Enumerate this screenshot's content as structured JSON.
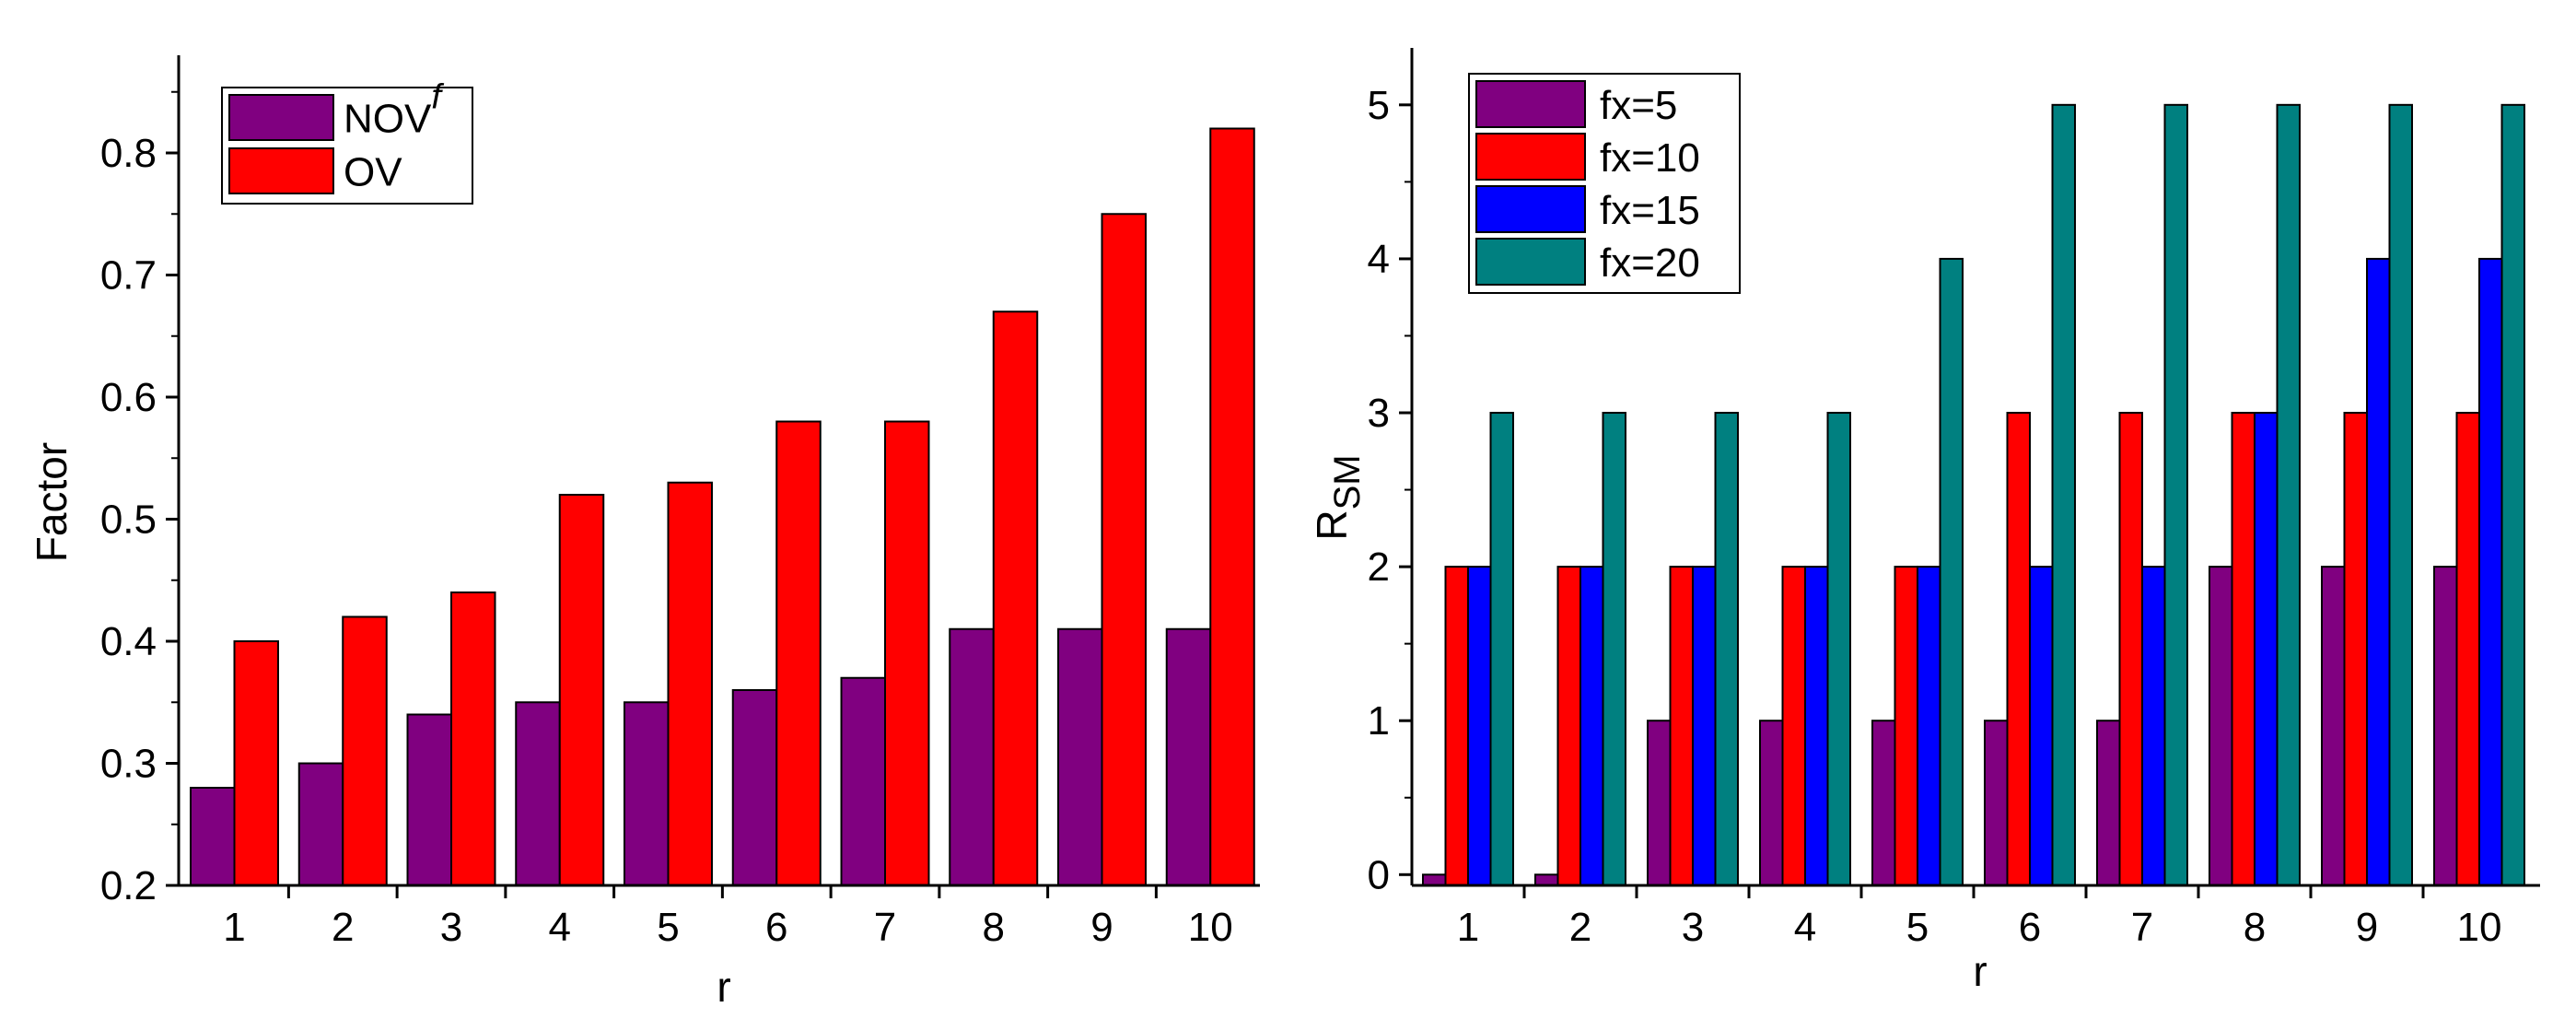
{
  "colors": {
    "nov": "#800080",
    "ov": "#ff0000",
    "fx5": "#800080",
    "fx10": "#ff0000",
    "fx15": "#0000ff",
    "fx20": "#008080"
  },
  "chart_data": [
    {
      "type": "bar",
      "title": "",
      "xlabel": "r",
      "ylabel": "Factor",
      "ylim": [
        0.2,
        0.88
      ],
      "yticks": [
        "0.2",
        "0.3",
        "0.4",
        "0.5",
        "0.6",
        "0.7",
        "0.8"
      ],
      "categories": [
        "1",
        "2",
        "3",
        "4",
        "5",
        "6",
        "7",
        "8",
        "9",
        "10"
      ],
      "legend_position": "top-left",
      "series": [
        {
          "name": "NOV",
          "name_sup": "f",
          "color": "#800080",
          "values": [
            0.28,
            0.3,
            0.34,
            0.35,
            0.35,
            0.36,
            0.37,
            0.41,
            0.41,
            0.41
          ]
        },
        {
          "name": "OV",
          "name_sup": "",
          "color": "#ff0000",
          "values": [
            0.4,
            0.42,
            0.44,
            0.52,
            0.53,
            0.58,
            0.58,
            0.67,
            0.75,
            0.82
          ]
        }
      ]
    },
    {
      "type": "bar",
      "title": "",
      "xlabel": "r",
      "ylabel": "R",
      "ylabel_sub": "SM",
      "ylim": [
        -0.07,
        5.37
      ],
      "yticks": [
        "0",
        "1",
        "2",
        "3",
        "4",
        "5"
      ],
      "categories": [
        "1",
        "2",
        "3",
        "4",
        "5",
        "6",
        "7",
        "8",
        "9",
        "10"
      ],
      "legend_position": "top-left",
      "series": [
        {
          "name": "fx=5",
          "color": "#800080",
          "values": [
            0,
            0,
            1,
            1,
            1,
            1,
            1,
            2,
            2,
            2
          ]
        },
        {
          "name": "fx=10",
          "color": "#ff0000",
          "values": [
            2,
            2,
            2,
            2,
            2,
            3,
            3,
            3,
            3,
            3
          ]
        },
        {
          "name": "fx=15",
          "color": "#0000ff",
          "values": [
            2,
            2,
            2,
            2,
            2,
            2,
            2,
            3,
            4,
            4
          ]
        },
        {
          "name": "fx=20",
          "color": "#008080",
          "values": [
            3,
            3,
            3,
            3,
            4,
            5,
            5,
            5,
            5,
            5
          ]
        }
      ]
    }
  ]
}
